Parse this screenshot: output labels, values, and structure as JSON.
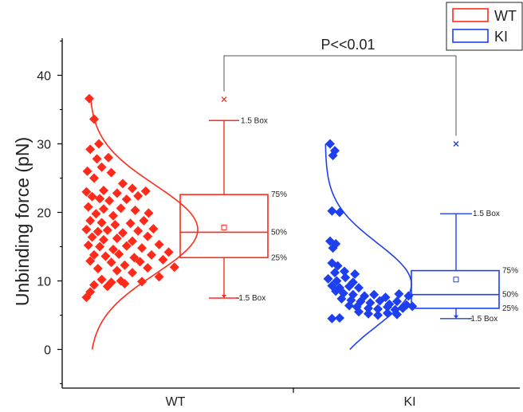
{
  "chart_data": {
    "type": "box",
    "ylabel": "Unbinding force (pN)",
    "ylim": [
      -5,
      45
    ],
    "yticks": [
      0,
      10,
      20,
      30,
      40
    ],
    "categories": [
      "WT",
      "KI"
    ],
    "significance": "P<<0.01",
    "legend": {
      "placement": "top-right",
      "entries": [
        "WT",
        "KI"
      ]
    },
    "colors": {
      "WT": "#ff2a1a",
      "KI": "#1e3ff0"
    },
    "box_labels": {
      "upper_whisker": "1.5 Box",
      "q3": "75%",
      "median": "50%",
      "q1": "25%",
      "lower_whisker": "-1.5 Box"
    },
    "series": [
      {
        "name": "WT",
        "box": {
          "lower_whisker": 7.5,
          "q1": 13.4,
          "median": 17.1,
          "q3": 22.6,
          "upper_whisker": 33.4,
          "mean": 17.8,
          "outliers": [
            36.5
          ]
        },
        "normal_curve": {
          "mean": 17.5,
          "sd": 6.5,
          "ymin": 0,
          "ymax": 37
        },
        "points": [
          [
            0.85,
            36.6
          ],
          [
            0.9,
            33.6
          ],
          [
            0.95,
            30.0
          ],
          [
            0.86,
            29.2
          ],
          [
            0.93,
            27.8
          ],
          [
            1.05,
            28.0
          ],
          [
            0.83,
            26.0
          ],
          [
            0.98,
            26.6
          ],
          [
            1.08,
            25.8
          ],
          [
            0.9,
            25.0
          ],
          [
            1.2,
            24.2
          ],
          [
            1.3,
            23.5
          ],
          [
            0.82,
            23.0
          ],
          [
            1.0,
            23.2
          ],
          [
            1.14,
            22.8
          ],
          [
            1.44,
            23.1
          ],
          [
            0.88,
            22.3
          ],
          [
            0.96,
            22.0
          ],
          [
            1.06,
            21.7
          ],
          [
            1.24,
            21.9
          ],
          [
            1.36,
            22.4
          ],
          [
            0.84,
            20.8
          ],
          [
            1.0,
            20.5
          ],
          [
            1.18,
            20.6
          ],
          [
            1.33,
            20.3
          ],
          [
            0.92,
            19.8
          ],
          [
            1.1,
            19.5
          ],
          [
            1.47,
            19.9
          ],
          [
            0.86,
            18.8
          ],
          [
            0.98,
            18.5
          ],
          [
            1.12,
            18.2
          ],
          [
            1.28,
            18.4
          ],
          [
            1.42,
            18.8
          ],
          [
            0.82,
            17.5
          ],
          [
            0.94,
            17.2
          ],
          [
            1.04,
            17.4
          ],
          [
            1.2,
            17.0
          ],
          [
            1.36,
            17.3
          ],
          [
            1.52,
            17.6
          ],
          [
            0.88,
            16.4
          ],
          [
            1.0,
            16.0
          ],
          [
            1.14,
            16.2
          ],
          [
            1.3,
            15.8
          ],
          [
            1.46,
            16.5
          ],
          [
            0.84,
            15.2
          ],
          [
            0.96,
            15.0
          ],
          [
            1.1,
            14.6
          ],
          [
            1.24,
            15.1
          ],
          [
            1.4,
            14.8
          ],
          [
            1.58,
            15.3
          ],
          [
            0.9,
            13.8
          ],
          [
            1.02,
            13.6
          ],
          [
            1.16,
            13.9
          ],
          [
            1.32,
            13.4
          ],
          [
            1.5,
            13.8
          ],
          [
            1.68,
            14.2
          ],
          [
            0.86,
            12.9
          ],
          [
            1.08,
            12.7
          ],
          [
            1.22,
            12.3
          ],
          [
            1.38,
            12.8
          ],
          [
            1.62,
            13.1
          ],
          [
            1.74,
            12.0
          ],
          [
            0.94,
            11.8
          ],
          [
            1.14,
            11.5
          ],
          [
            1.3,
            11.2
          ],
          [
            1.46,
            11.9
          ],
          [
            1.58,
            10.6
          ],
          [
            0.98,
            10.2
          ],
          [
            1.08,
            9.8
          ],
          [
            1.18,
            10.0
          ],
          [
            1.4,
            9.9
          ],
          [
            0.9,
            9.4
          ],
          [
            1.04,
            9.2
          ],
          [
            1.22,
            9.6
          ],
          [
            0.86,
            8.4
          ],
          [
            0.82,
            7.6
          ]
        ]
      },
      {
        "name": "KI",
        "box": {
          "lower_whisker": 4.5,
          "q1": 6.0,
          "median": 8.0,
          "q3": 11.5,
          "upper_whisker": 19.8,
          "mean": 10.2,
          "outliers": [
            30.0
          ]
        },
        "normal_curve": {
          "mean": 9.5,
          "sd": 6.0,
          "ymin": 0,
          "ymax": 30
        },
        "points": [
          [
            0.9,
            30.0
          ],
          [
            0.95,
            29.0
          ],
          [
            0.93,
            28.3
          ],
          [
            0.92,
            20.2
          ],
          [
            1.0,
            20.0
          ],
          [
            0.9,
            15.8
          ],
          [
            0.96,
            15.4
          ],
          [
            0.93,
            14.8
          ],
          [
            0.92,
            12.6
          ],
          [
            0.98,
            12.2
          ],
          [
            0.95,
            11.2
          ],
          [
            1.05,
            11.4
          ],
          [
            1.16,
            11.0
          ],
          [
            0.88,
            10.3
          ],
          [
            0.97,
            10.0
          ],
          [
            1.06,
            10.5
          ],
          [
            1.14,
            9.8
          ],
          [
            0.92,
            9.3
          ],
          [
            1.0,
            9.0
          ],
          [
            1.1,
            9.2
          ],
          [
            1.2,
            9.0
          ],
          [
            0.96,
            8.5
          ],
          [
            1.04,
            8.2
          ],
          [
            1.14,
            8.0
          ],
          [
            1.26,
            7.8
          ],
          [
            1.36,
            8.0
          ],
          [
            1.48,
            7.6
          ],
          [
            1.62,
            8.1
          ],
          [
            1.72,
            7.8
          ],
          [
            1.02,
            7.4
          ],
          [
            1.12,
            7.2
          ],
          [
            1.22,
            7.0
          ],
          [
            1.32,
            6.8
          ],
          [
            1.42,
            7.1
          ],
          [
            1.52,
            6.6
          ],
          [
            1.6,
            7.0
          ],
          [
            1.7,
            6.5
          ],
          [
            1.1,
            6.4
          ],
          [
            1.18,
            6.2
          ],
          [
            1.3,
            6.0
          ],
          [
            1.4,
            5.9
          ],
          [
            1.5,
            6.2
          ],
          [
            1.58,
            5.8
          ],
          [
            1.66,
            6.0
          ],
          [
            1.76,
            6.3
          ],
          [
            1.2,
            5.5
          ],
          [
            1.3,
            5.2
          ],
          [
            1.4,
            5.0
          ],
          [
            1.5,
            5.3
          ],
          [
            1.6,
            5.1
          ],
          [
            0.92,
            4.5
          ],
          [
            1.0,
            4.6
          ]
        ]
      }
    ]
  }
}
